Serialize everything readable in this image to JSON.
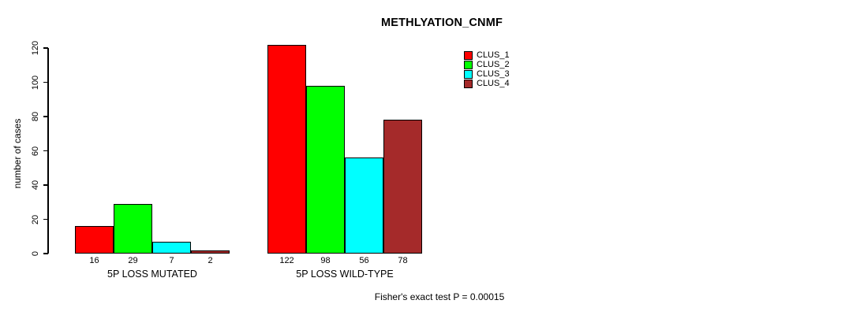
{
  "chart_data": {
    "type": "bar",
    "title": "METHLYATION_CNMF",
    "ylabel": "number of cases",
    "xlabel": "",
    "ylim": [
      0,
      120
    ],
    "yticks": [
      0,
      20,
      40,
      60,
      80,
      100,
      120
    ],
    "categories": [
      "5P LOSS MUTATED",
      "5P LOSS WILD-TYPE"
    ],
    "series": [
      {
        "name": "CLUS_1",
        "color": "#ff0000",
        "values": [
          16,
          122
        ]
      },
      {
        "name": "CLUS_2",
        "color": "#00ff00",
        "values": [
          29,
          98
        ]
      },
      {
        "name": "CLUS_3",
        "color": "#00ffff",
        "values": [
          7,
          56
        ]
      },
      {
        "name": "CLUS_4",
        "color": "#a52a2a",
        "values": [
          2,
          78
        ]
      }
    ],
    "legend": {
      "position": "top-right",
      "entries": [
        "CLUS_1",
        "CLUS_2",
        "CLUS_3",
        "CLUS_4"
      ]
    },
    "annotation": "Fisher's exact test P = 0.00015",
    "grid": false,
    "background": "#ffffff",
    "axis_color": "#000000",
    "bar_border_color": "#000000"
  }
}
